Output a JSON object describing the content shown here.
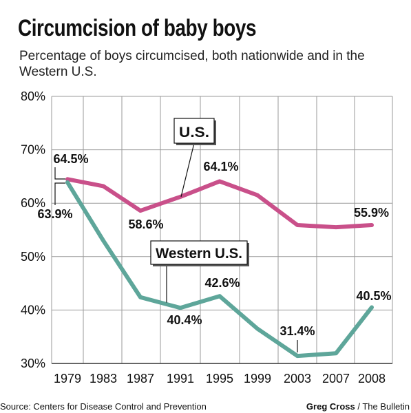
{
  "title": "Circumcision of baby boys",
  "subtitle": "Percentage of boys circumcised, both nationwide and in the Western U.S.",
  "source": "Source: Centers for Disease Control and Prevention",
  "credit_name": "Greg Cross",
  "credit_org": " / The Bulletin",
  "colors": {
    "us": "#c9508a",
    "western": "#5ea69a",
    "grid": "#999999",
    "axis": "#333333"
  },
  "chart_data": {
    "type": "line",
    "categories": [
      "1979",
      "1983",
      "1987",
      "1991",
      "1995",
      "1999",
      "2003",
      "2007",
      "2008"
    ],
    "ylim": [
      30,
      80
    ],
    "yticks": [
      30,
      40,
      50,
      60,
      70,
      80
    ],
    "ytick_labels": [
      "30%",
      "40%",
      "50%",
      "60%",
      "70%",
      "80%"
    ],
    "grid": true,
    "series": [
      {
        "name": "U.S.",
        "values": [
          64.5,
          63.2,
          58.6,
          61.2,
          64.1,
          61.5,
          55.9,
          55.5,
          55.9
        ]
      },
      {
        "name": "Western U.S.",
        "values": [
          63.9,
          53.0,
          42.4,
          40.4,
          42.6,
          36.5,
          31.4,
          31.9,
          40.5
        ]
      }
    ],
    "data_labels": [
      {
        "text": "64.5%",
        "series": 0,
        "index": 0
      },
      {
        "text": "58.6%",
        "series": 0,
        "index": 2
      },
      {
        "text": "64.1%",
        "series": 0,
        "index": 4
      },
      {
        "text": "55.9%",
        "series": 0,
        "index": 8
      },
      {
        "text": "63.9%",
        "series": 1,
        "index": 0
      },
      {
        "text": "40.4%",
        "series": 1,
        "index": 3
      },
      {
        "text": "42.6%",
        "series": 1,
        "index": 4
      },
      {
        "text": "31.4%",
        "series": 1,
        "index": 6
      },
      {
        "text": "40.5%",
        "series": 1,
        "index": 8
      }
    ]
  }
}
